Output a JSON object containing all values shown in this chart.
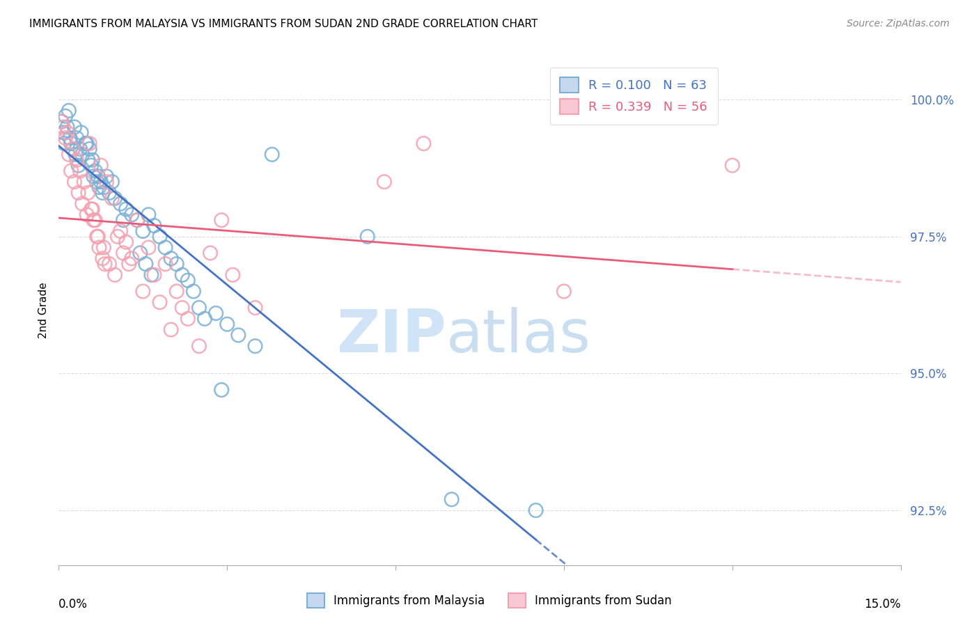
{
  "title": "IMMIGRANTS FROM MALAYSIA VS IMMIGRANTS FROM SUDAN 2ND GRADE CORRELATION CHART",
  "source": "Source: ZipAtlas.com",
  "ylabel": "2nd Grade",
  "ylabel_values": [
    92.5,
    95.0,
    97.5,
    100.0
  ],
  "xmin": 0.0,
  "xmax": 15.0,
  "ymin": 91.5,
  "ymax": 100.8,
  "R_malaysia": 0.1,
  "N_malaysia": 63,
  "R_sudan": 0.339,
  "N_sudan": 56,
  "color_malaysia": "#7bafd4",
  "color_sudan": "#f4a0b0",
  "line_color_malaysia": "#4472c4",
  "line_color_sudan": "#e85c7a",
  "malaysia_x": [
    0.1,
    0.15,
    0.2,
    0.25,
    0.3,
    0.35,
    0.4,
    0.5,
    0.55,
    0.6,
    0.65,
    0.7,
    0.75,
    0.8,
    0.85,
    0.9,
    0.95,
    1.0,
    1.1,
    1.15,
    1.2,
    1.3,
    1.4,
    1.5,
    1.6,
    1.7,
    1.8,
    1.9,
    2.0,
    2.1,
    2.2,
    2.3,
    2.4,
    2.5,
    2.6,
    2.8,
    3.0,
    3.2,
    3.5,
    0.05,
    0.08,
    0.12,
    0.18,
    0.22,
    0.28,
    0.32,
    0.38,
    0.42,
    0.48,
    0.52,
    0.58,
    0.62,
    0.68,
    0.72,
    0.78,
    5.5,
    1.45,
    1.55,
    1.65,
    2.9,
    7.0,
    8.5,
    3.8
  ],
  "malaysia_y": [
    99.2,
    99.5,
    99.3,
    99.1,
    99.0,
    98.8,
    99.4,
    99.2,
    99.1,
    98.9,
    98.7,
    98.6,
    98.5,
    98.4,
    98.6,
    98.3,
    98.5,
    98.2,
    98.1,
    97.8,
    98.0,
    97.9,
    97.8,
    97.6,
    97.9,
    97.7,
    97.5,
    97.3,
    97.1,
    97.0,
    96.8,
    96.7,
    96.5,
    96.2,
    96.0,
    96.1,
    95.9,
    95.7,
    95.5,
    99.6,
    99.4,
    99.7,
    99.8,
    99.2,
    99.5,
    99.3,
    99.1,
    99.0,
    99.2,
    98.9,
    98.8,
    98.6,
    98.5,
    98.4,
    98.3,
    97.5,
    97.2,
    97.0,
    96.8,
    94.7,
    92.7,
    92.5,
    99.0
  ],
  "sudan_x": [
    0.08,
    0.12,
    0.18,
    0.22,
    0.28,
    0.35,
    0.42,
    0.5,
    0.55,
    0.6,
    0.65,
    0.7,
    0.75,
    0.8,
    0.85,
    0.9,
    0.95,
    1.0,
    1.1,
    1.2,
    1.3,
    1.4,
    1.5,
    1.6,
    1.7,
    1.8,
    1.9,
    2.0,
    2.1,
    2.2,
    2.3,
    2.5,
    2.7,
    2.9,
    3.1,
    3.5,
    0.05,
    0.15,
    0.25,
    0.32,
    0.38,
    0.45,
    0.52,
    0.58,
    0.62,
    0.68,
    0.72,
    0.78,
    0.82,
    1.05,
    1.15,
    1.25,
    5.8,
    6.5,
    9.0,
    12.0
  ],
  "sudan_y": [
    99.5,
    99.3,
    99.0,
    98.7,
    98.5,
    98.3,
    98.1,
    97.9,
    99.2,
    98.0,
    97.8,
    97.5,
    98.8,
    97.3,
    98.5,
    97.0,
    98.2,
    96.8,
    97.6,
    97.4,
    97.1,
    97.8,
    96.5,
    97.3,
    96.8,
    96.3,
    97.0,
    95.8,
    96.5,
    96.2,
    96.0,
    95.5,
    97.2,
    97.8,
    96.8,
    96.2,
    99.6,
    99.4,
    99.1,
    98.9,
    98.7,
    98.5,
    98.3,
    98.0,
    97.8,
    97.5,
    97.3,
    97.1,
    97.0,
    97.5,
    97.2,
    97.0,
    98.5,
    99.2,
    96.5,
    98.8
  ]
}
